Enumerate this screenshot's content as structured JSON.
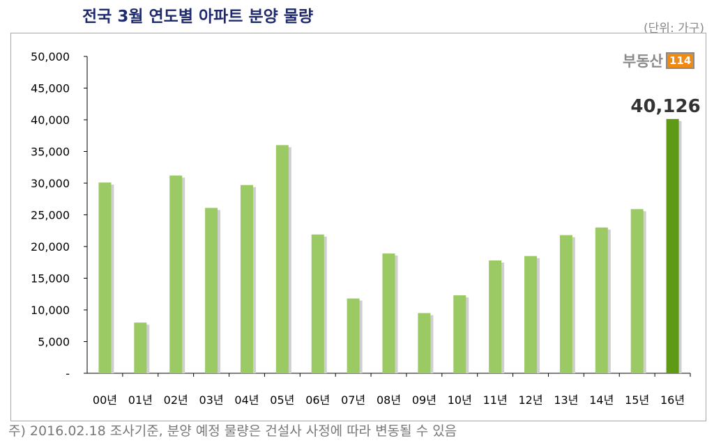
{
  "title": "전국 3월 연도별 아파트 분양 물량",
  "unit": "(단위: 가구)",
  "note": "주) 2016.02.18 조사기준, 분양 예정 물량은 건설사 사정에 따라 변동될 수 있음",
  "logo": {
    "text": "부동산",
    "number": "114"
  },
  "chart_data": {
    "type": "bar",
    "title": "전국 3월 연도별 아파트 분양 물량",
    "categories": [
      "00년",
      "01년",
      "02년",
      "03년",
      "04년",
      "05년",
      "06년",
      "07년",
      "08년",
      "09년",
      "10년",
      "11년",
      "12년",
      "13년",
      "14년",
      "15년",
      "16년"
    ],
    "values": [
      30100,
      8000,
      31200,
      26100,
      29700,
      36000,
      21900,
      11800,
      18900,
      9500,
      12300,
      17800,
      18500,
      21800,
      23000,
      25900,
      40126
    ],
    "ylim": [
      0,
      50000
    ],
    "yticks": [
      "-",
      "5,000",
      "10,000",
      "15,000",
      "20,000",
      "25,000",
      "30,000",
      "35,000",
      "40,000",
      "45,000",
      "50,000"
    ],
    "data_labels": {
      "16년": "40,126"
    },
    "grid": false,
    "colors": {
      "bar": "#9bc964",
      "highlight": "#5f9a16"
    }
  }
}
